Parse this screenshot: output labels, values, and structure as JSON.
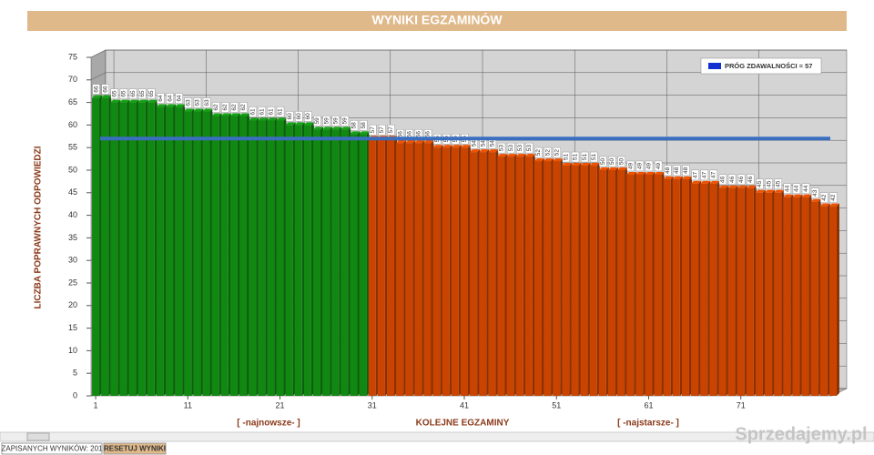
{
  "chart_data": {
    "type": "bar3d",
    "title": "WYNIKI EGZAMINÓW",
    "y_label": "LICZBA POPRAWNYCH ODPOWIEDZI",
    "x_label": "KOLEJNE EGZAMINY",
    "x_annotations": [
      "[ -najnowsze- ]",
      "[ -najstarsze- ]"
    ],
    "x": [
      1,
      2,
      3,
      4,
      5,
      6,
      7,
      8,
      9,
      10,
      11,
      12,
      13,
      14,
      15,
      16,
      17,
      18,
      19,
      20,
      21,
      22,
      23,
      24,
      25,
      26,
      27,
      28,
      29,
      30,
      31,
      32,
      33,
      34,
      35,
      36,
      37,
      38,
      39,
      40,
      41,
      42,
      43,
      44,
      45,
      46,
      47,
      48,
      49,
      50,
      51,
      52,
      53,
      54,
      55,
      56,
      57,
      58,
      59,
      60,
      61,
      62,
      63,
      64,
      65,
      66,
      67,
      68,
      69,
      70,
      71,
      72,
      73,
      74,
      75,
      76,
      77,
      78,
      79,
      80,
      81
    ],
    "values": [
      66,
      66,
      65,
      65,
      65,
      65,
      65,
      64,
      64,
      64,
      63,
      63,
      63,
      62,
      62,
      62,
      62,
      61,
      61,
      61,
      61,
      60,
      60,
      60,
      59,
      59,
      59,
      59,
      58,
      58,
      57,
      57,
      57,
      56,
      56,
      56,
      56,
      55,
      55,
      55,
      55,
      54,
      54,
      54,
      53,
      53,
      53,
      53,
      52,
      52,
      52,
      51,
      51,
      51,
      51,
      50,
      50,
      50,
      49,
      49,
      49,
      49,
      48,
      48,
      48,
      47,
      47,
      47,
      46,
      46,
      46,
      46,
      45,
      45,
      45,
      44,
      44,
      44,
      43,
      42,
      42
    ],
    "colors": [
      "#118811",
      "#118811",
      "#118811",
      "#118811",
      "#118811",
      "#118811",
      "#118811",
      "#118811",
      "#118811",
      "#118811",
      "#118811",
      "#118811",
      "#118811",
      "#118811",
      "#118811",
      "#118811",
      "#118811",
      "#118811",
      "#118811",
      "#118811",
      "#118811",
      "#118811",
      "#118811",
      "#118811",
      "#118811",
      "#118811",
      "#118811",
      "#118811",
      "#118811",
      "#118811",
      "#c84400",
      "#c84400",
      "#c84400",
      "#c84400",
      "#c84400",
      "#c84400",
      "#c84400",
      "#c84400",
      "#c84400",
      "#c84400",
      "#c84400",
      "#c84400",
      "#c84400",
      "#c84400",
      "#c84400",
      "#c84400",
      "#c84400",
      "#c84400",
      "#c84400",
      "#c84400",
      "#c84400",
      "#c84400",
      "#c84400",
      "#c84400",
      "#c84400",
      "#c84400",
      "#c84400",
      "#c84400",
      "#c84400",
      "#c84400",
      "#c84400",
      "#c84400",
      "#c84400",
      "#c84400",
      "#c84400",
      "#c84400",
      "#c84400",
      "#c84400",
      "#c84400",
      "#c84400",
      "#c84400",
      "#c84400",
      "#c84400",
      "#c84400",
      "#c84400",
      "#c84400",
      "#c84400",
      "#c84400",
      "#c84400",
      "#c84400",
      "#c84400"
    ],
    "threshold": {
      "label": "PRÓG ZDAWALNOŚCI = 57",
      "value": 57,
      "color": "#3a6fc0"
    },
    "legend": "upper right",
    "xlim": [
      0.5,
      81.5
    ],
    "xticks": [
      1,
      11,
      21,
      31,
      41,
      51,
      61,
      71
    ],
    "ylim": [
      0,
      75
    ],
    "yticks": [
      0,
      5,
      10,
      15,
      20,
      25,
      30,
      35,
      40,
      45,
      50,
      55,
      60,
      65,
      70,
      75
    ],
    "grid": true
  },
  "footer": {
    "saved": "ZAPISANYCH WYNIKÓW: 201",
    "reset_button": "RESETUJ WYNIKI"
  },
  "watermark": "Sprzedajemy.pl"
}
